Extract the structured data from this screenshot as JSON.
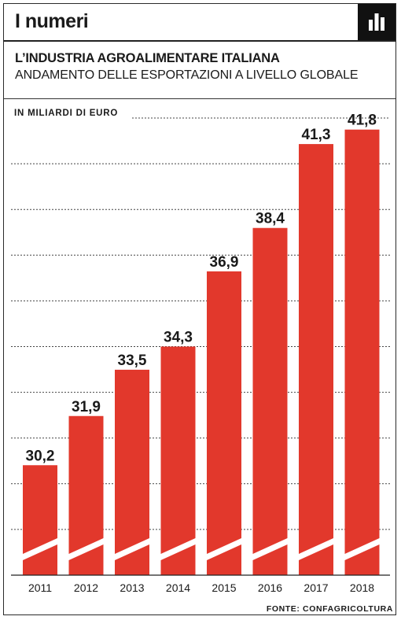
{
  "header": {
    "title": "I numeri",
    "icon": "bar-chart-icon"
  },
  "chart_data": {
    "type": "bar",
    "title": "L’INDUSTRIA AGROALIMENTARE ITALIANA",
    "subtitle": "ANDAMENTO DELLE ESPORTAZIONI A LIVELLO GLOBALE",
    "unit_label": "IN MILIARDI DI EURO",
    "categories": [
      "2011",
      "2012",
      "2013",
      "2014",
      "2015",
      "2016",
      "2017",
      "2018"
    ],
    "values": [
      30.2,
      31.9,
      33.5,
      34.3,
      36.9,
      38.4,
      41.3,
      41.8
    ],
    "value_labels": [
      "30,2",
      "31,9",
      "33,5",
      "34,3",
      "36,9",
      "38,4",
      "41,3",
      "41,8"
    ],
    "axis_break": true,
    "grid": "dotted horizontal",
    "colors": {
      "bar": "#e2382c",
      "text": "#1a1a1a"
    },
    "source": "FONTE: CONFAGRICOLTURA"
  }
}
